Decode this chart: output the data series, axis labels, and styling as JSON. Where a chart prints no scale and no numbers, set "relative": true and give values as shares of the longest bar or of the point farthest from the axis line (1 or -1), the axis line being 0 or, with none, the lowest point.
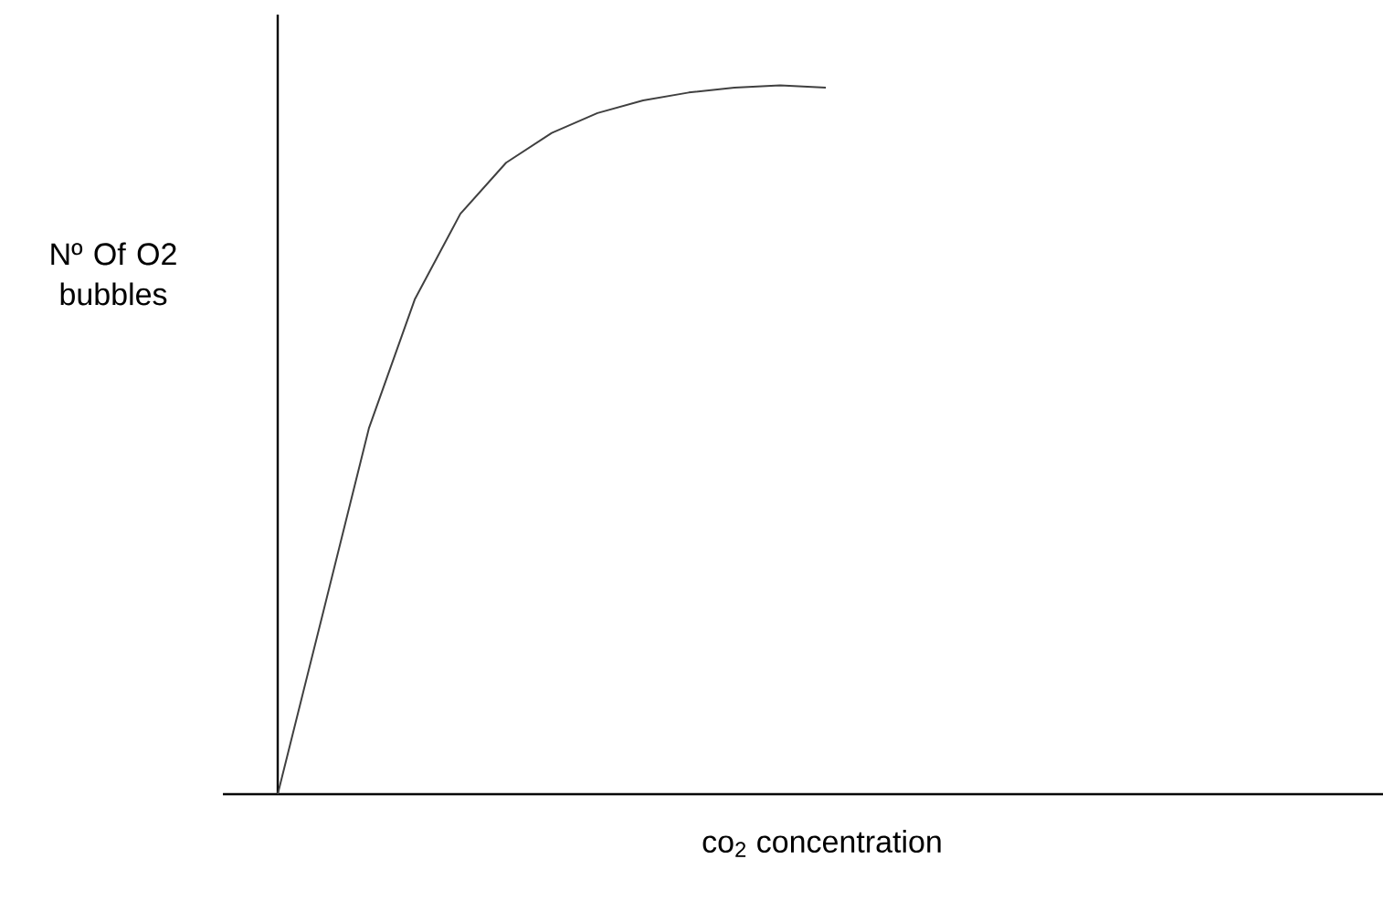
{
  "chart_data": {
    "type": "line",
    "relative": true,
    "xlabel": "co$_{2}$ concentration",
    "ylabel": "Nº Of O2 bubbles",
    "categories": [
      null,
      null,
      null,
      null,
      null,
      null,
      null,
      null,
      null,
      null,
      null,
      null,
      null
    ],
    "series": [
      {
        "color": "#404040",
        "values": [
          0,
          0.258,
          0.517,
          0.698,
          0.819,
          0.891,
          0.933,
          0.961,
          0.979,
          0.99,
          0.997,
          1,
          0.997
        ]
      }
    ]
  }
}
